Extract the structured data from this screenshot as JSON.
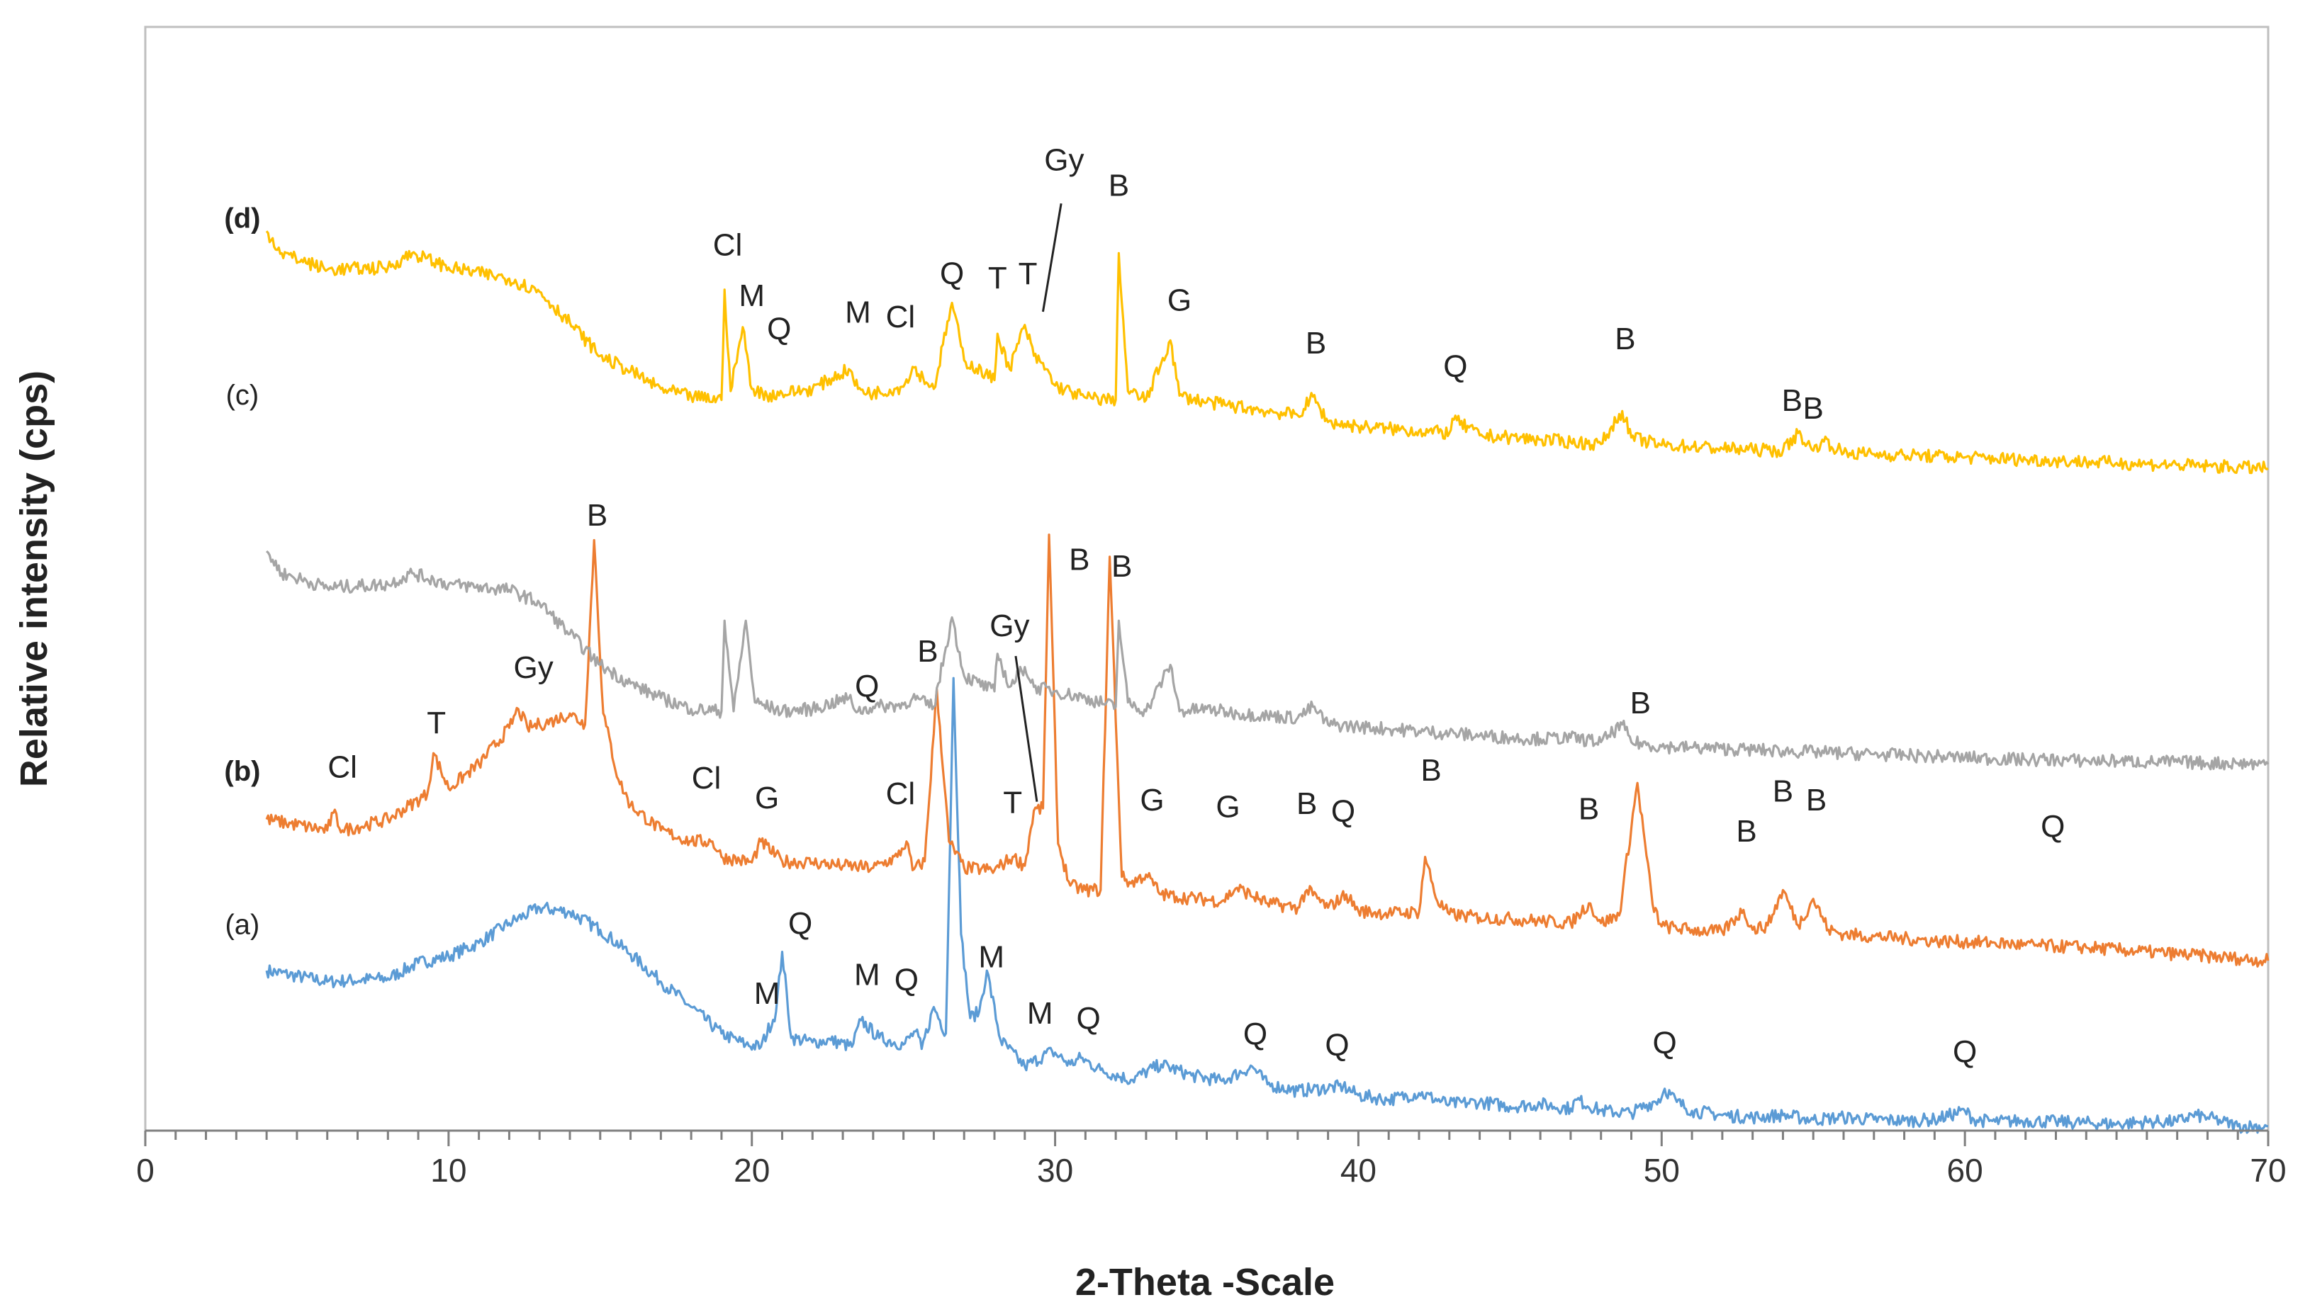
{
  "chart_data": {
    "type": "line",
    "title": "",
    "xlabel": "2-Theta -Scale",
    "ylabel": "Relative intensity (cps)",
    "xlim": [
      0,
      70
    ],
    "ylim": [
      0,
      1000
    ],
    "x_ticks": [
      "0",
      "10",
      "20",
      "30",
      "40",
      "50",
      "60",
      "70"
    ],
    "y_ticks_shown": false,
    "grid": false,
    "series": [
      {
        "name": "(a)",
        "label": "(a)",
        "color": "#5b9bd5",
        "x": [
          4,
          6,
          8,
          9,
          10,
          11,
          12,
          13,
          14,
          15,
          16,
          17,
          18,
          19,
          19.8,
          20.3,
          20.8,
          21.0,
          21.3,
          22,
          22.6,
          23.3,
          23.6,
          24.2,
          25.0,
          25.4,
          25.6,
          26.0,
          26.4,
          26.65,
          26.9,
          27.2,
          27.5,
          27.75,
          28.2,
          29.0,
          29.9,
          30.5,
          30.85,
          31.5,
          32.5,
          33.5,
          34.5,
          35.5,
          36.5,
          37,
          38,
          39.5,
          40,
          41,
          42,
          43,
          44,
          45,
          46,
          47,
          47.2,
          48,
          49,
          50,
          50.1,
          50.5,
          51,
          52,
          53,
          54,
          55,
          56,
          57,
          58,
          59,
          60,
          60.3,
          61,
          62,
          63,
          64,
          65,
          66,
          67,
          67.5,
          68,
          68.5,
          69,
          70
        ],
        "y": [
          145,
          135,
          138,
          152,
          158,
          170,
          188,
          202,
          198,
          182,
          160,
          135,
          112,
          88,
          78,
          76,
          108,
          162,
          84,
          80,
          82,
          76,
          100,
          84,
          78,
          90,
          74,
          112,
          88,
          410,
          178,
          102,
          108,
          145,
          82,
          58,
          72,
          60,
          66,
          55,
          46,
          60,
          50,
          45,
          58,
          42,
          36,
          40,
          32,
          28,
          34,
          24,
          26,
          22,
          24,
          20,
          28,
          18,
          16,
          30,
          38,
          26,
          18,
          14,
          12,
          14,
          10,
          12,
          10,
          9,
          10,
          18,
          10,
          8,
          9,
          8,
          7,
          6,
          8,
          8,
          14,
          12,
          8,
          4,
          4
        ]
      },
      {
        "name": "(b)",
        "label": "(b)",
        "color": "#ed7d31",
        "x": [
          4,
          6,
          6.2,
          6.5,
          8,
          9.3,
          9.5,
          10,
          11,
          12,
          12.3,
          12.6,
          13,
          13.5,
          14,
          14.5,
          14.8,
          15.1,
          15.6,
          16,
          17,
          18,
          18.7,
          19,
          20,
          20.3,
          21,
          22,
          23,
          24,
          24.8,
          25.1,
          25.3,
          25.7,
          26.1,
          26.5,
          27,
          28,
          28.6,
          29,
          29.3,
          29.6,
          29.8,
          30.1,
          30.5,
          31,
          31.5,
          31.8,
          32.2,
          32.5,
          33,
          33.5,
          34,
          35.5,
          36,
          37,
          38,
          38.3,
          39,
          39.6,
          40,
          41,
          42,
          42.2,
          42.6,
          43,
          44,
          45,
          46,
          47,
          47.6,
          48,
          48.6,
          49.2,
          49.7,
          50,
          51,
          52,
          52.7,
          53,
          53.5,
          54,
          54.5,
          55,
          55.5,
          56,
          57,
          58,
          59,
          60,
          61,
          62,
          63,
          64,
          65,
          66,
          67,
          68,
          69,
          70
        ],
        "y": [
          282,
          272,
          288,
          272,
          282,
          305,
          342,
          310,
          332,
          365,
          382,
          365,
          368,
          372,
          378,
          368,
          535,
          378,
          318,
          295,
          272,
          262,
          262,
          248,
          243,
          262,
          244,
          243,
          240,
          238,
          248,
          262,
          236,
          244,
          400,
          262,
          238,
          236,
          248,
          240,
          290,
          292,
          540,
          260,
          222,
          218,
          218,
          520,
          230,
          224,
          232,
          214,
          212,
          208,
          220,
          206,
          202,
          218,
          202,
          214,
          199,
          197,
          198,
          248,
          208,
          196,
          193,
          192,
          190,
          188,
          206,
          188,
          195,
          315,
          205,
          185,
          182,
          180,
          200,
          182,
          186,
          218,
          186,
          210,
          182,
          178,
          176,
          174,
          172,
          171,
          170,
          168,
          167,
          166,
          164,
          162,
          160,
          158,
          156,
          154
        ]
      },
      {
        "name": "(c)",
        "label": "(c)",
        "color": "#a5a5a5",
        "x": [
          4,
          4.5,
          6,
          8,
          8.8,
          10,
          12,
          13,
          14,
          15,
          16,
          17,
          18,
          19,
          19.1,
          19.4,
          19.8,
          20.1,
          21,
          22,
          23.2,
          23.5,
          24,
          25,
          25.3,
          26,
          26.6,
          27,
          28,
          28.1,
          28.5,
          29,
          29.3,
          30,
          31,
          32,
          32.1,
          32.4,
          33,
          33.8,
          34.1,
          35,
          36,
          37,
          38,
          38.5,
          39,
          40,
          41,
          42,
          43,
          44,
          45,
          46,
          47,
          48,
          48.7,
          49,
          50,
          51,
          52,
          53,
          54,
          55,
          56,
          57,
          58,
          59,
          60,
          61,
          62,
          63,
          64,
          65,
          66,
          67,
          68,
          69,
          70
        ],
        "y": [
          525,
          505,
          492,
          495,
          505,
          495,
          490,
          478,
          450,
          422,
          405,
          392,
          382,
          380,
          462,
          380,
          462,
          388,
          380,
          382,
          392,
          380,
          384,
          386,
          392,
          384,
          465,
          412,
          398,
          432,
          402,
          420,
          402,
          398,
          392,
          384,
          462,
          388,
          380,
          422,
          380,
          382,
          378,
          376,
          374,
          384,
          368,
          366,
          364,
          362,
          360,
          358,
          356,
          355,
          356,
          352,
          368,
          352,
          348,
          347,
          346,
          345,
          344,
          343,
          342,
          341,
          340,
          339,
          338,
          337,
          336,
          336,
          335,
          335,
          334,
          334,
          333,
          333,
          332
        ]
      },
      {
        "name": "(d)",
        "label": "(d)",
        "color": "#ffc000",
        "x": [
          4,
          4.5,
          6,
          8,
          8.8,
          10,
          12,
          13,
          14,
          15,
          16,
          17,
          18,
          19,
          19.1,
          19.3,
          19.7,
          20,
          20.5,
          21,
          22,
          23.2,
          23.5,
          24,
          25,
          25.3,
          26,
          26.6,
          27,
          28,
          28.1,
          28.5,
          29,
          29.3,
          29.7,
          30,
          31,
          32,
          32.1,
          32.4,
          33,
          33.8,
          34.1,
          35,
          36,
          37,
          38,
          38.5,
          39,
          40,
          41,
          42,
          43,
          43.1,
          44,
          45,
          46,
          47,
          48,
          48.7,
          49,
          50,
          51,
          52,
          53,
          54,
          54.5,
          55,
          55.3,
          56,
          57,
          58,
          59,
          60,
          61,
          62,
          63,
          64,
          65,
          66,
          67,
          68,
          69,
          70
        ],
        "y": [
          815,
          795,
          780,
          782,
          795,
          782,
          772,
          760,
          732,
          702,
          688,
          672,
          665,
          662,
          762,
          670,
          728,
          672,
          666,
          668,
          672,
          690,
          672,
          668,
          674,
          692,
          672,
          750,
          698,
          680,
          722,
          690,
          730,
          702,
          690,
          675,
          664,
          662,
          795,
          670,
          662,
          716,
          666,
          660,
          656,
          652,
          648,
          665,
          642,
          638,
          636,
          634,
          632,
          645,
          630,
          628,
          626,
          624,
          622,
          652,
          628,
          621,
          620,
          618,
          617,
          616,
          632,
          616,
          626,
          614,
          613,
          612,
          611,
          610,
          609,
          608,
          607,
          606,
          605,
          604,
          603,
          602,
          601,
          600
        ]
      }
    ],
    "annotations": [
      {
        "text": "Cl",
        "x": 6.5,
        "y": 320,
        "series": "(b)"
      },
      {
        "text": "T",
        "x": 9.6,
        "y": 360,
        "series": "(b)"
      },
      {
        "text": "Gy",
        "x": 12.8,
        "y": 410,
        "series": "(b)"
      },
      {
        "text": "B",
        "x": 14.9,
        "y": 548,
        "series": "(b)"
      },
      {
        "text": "Cl",
        "x": 18.5,
        "y": 310,
        "series": "(b)"
      },
      {
        "text": "G",
        "x": 20.5,
        "y": 292,
        "series": "(b)"
      },
      {
        "text": "Q",
        "x": 23.8,
        "y": 393,
        "series": "(b)"
      },
      {
        "text": "B",
        "x": 25.8,
        "y": 425,
        "series": "(b)"
      },
      {
        "text": "Cl",
        "x": 24.9,
        "y": 296,
        "series": "(b)"
      },
      {
        "text": "Gy",
        "x": 28.5,
        "y": 448,
        "series": "(b)"
      },
      {
        "text": "T",
        "x": 28.6,
        "y": 288,
        "series": "(b)"
      },
      {
        "text": "B",
        "x": 30.8,
        "y": 508,
        "series": "(b)"
      },
      {
        "text": "B",
        "x": 32.2,
        "y": 502,
        "series": "(b)"
      },
      {
        "text": "G",
        "x": 33.2,
        "y": 290,
        "series": "(b)"
      },
      {
        "text": "G",
        "x": 35.7,
        "y": 284,
        "series": "(b)"
      },
      {
        "text": "B",
        "x": 38.3,
        "y": 287,
        "series": "(b)"
      },
      {
        "text": "Q",
        "x": 39.5,
        "y": 280,
        "series": "(b)"
      },
      {
        "text": "B",
        "x": 42.4,
        "y": 317,
        "series": "(b)"
      },
      {
        "text": "B",
        "x": 47.6,
        "y": 282,
        "series": "(b)"
      },
      {
        "text": "B",
        "x": 49.3,
        "y": 378,
        "series": "(b)"
      },
      {
        "text": "B",
        "x": 52.8,
        "y": 262,
        "series": "(b)"
      },
      {
        "text": "B",
        "x": 54.0,
        "y": 298,
        "series": "(b)"
      },
      {
        "text": "B",
        "x": 55.1,
        "y": 290,
        "series": "(b)"
      },
      {
        "text": "Q",
        "x": 62.9,
        "y": 266,
        "series": "(b)"
      },
      {
        "text": "Q",
        "x": 21.6,
        "y": 178,
        "series": "(a)"
      },
      {
        "text": "M",
        "x": 20.5,
        "y": 115,
        "series": "(a)"
      },
      {
        "text": "M",
        "x": 23.8,
        "y": 132,
        "series": "(a)"
      },
      {
        "text": "Q",
        "x": 25.1,
        "y": 127,
        "series": "(a)"
      },
      {
        "text": "M",
        "x": 27.9,
        "y": 148,
        "series": "(a)"
      },
      {
        "text": "M",
        "x": 29.5,
        "y": 97,
        "series": "(a)"
      },
      {
        "text": "Q",
        "x": 31.1,
        "y": 92,
        "series": "(a)"
      },
      {
        "text": "Q",
        "x": 36.6,
        "y": 78,
        "series": "(a)"
      },
      {
        "text": "Q",
        "x": 39.3,
        "y": 68,
        "series": "(a)"
      },
      {
        "text": "Q",
        "x": 50.1,
        "y": 70,
        "series": "(a)"
      },
      {
        "text": "Q",
        "x": 60.0,
        "y": 62,
        "series": "(a)"
      },
      {
        "text": "Cl",
        "x": 19.2,
        "y": 793,
        "series": "(d)"
      },
      {
        "text": "M",
        "x": 20.0,
        "y": 747,
        "series": "(d)"
      },
      {
        "text": "Q",
        "x": 20.9,
        "y": 717,
        "series": "(d)"
      },
      {
        "text": "M",
        "x": 23.5,
        "y": 732,
        "series": "(d)"
      },
      {
        "text": "Cl",
        "x": 24.9,
        "y": 728,
        "series": "(d)"
      },
      {
        "text": "Q",
        "x": 26.6,
        "y": 767,
        "series": "(d)"
      },
      {
        "text": "T",
        "x": 28.1,
        "y": 763,
        "series": "(d)"
      },
      {
        "text": "T",
        "x": 29.1,
        "y": 767,
        "series": "(d)"
      },
      {
        "text": "Gy",
        "x": 30.3,
        "y": 870,
        "series": "(d)"
      },
      {
        "text": "B",
        "x": 32.1,
        "y": 847,
        "series": "(d)"
      },
      {
        "text": "G",
        "x": 34.1,
        "y": 743,
        "series": "(d)"
      },
      {
        "text": "B",
        "x": 38.6,
        "y": 704,
        "series": "(d)"
      },
      {
        "text": "Q",
        "x": 43.2,
        "y": 683,
        "series": "(d)"
      },
      {
        "text": "B",
        "x": 48.8,
        "y": 708,
        "series": "(d)"
      },
      {
        "text": "B",
        "x": 54.3,
        "y": 652,
        "series": "(d)"
      },
      {
        "text": "B",
        "x": 55.0,
        "y": 645,
        "series": "(d)"
      }
    ],
    "leaders": [
      {
        "from_x": 28.7,
        "from_y": 430,
        "to_x": 29.4,
        "to_y": 298
      },
      {
        "from_x": 30.2,
        "from_y": 840,
        "to_x": 29.6,
        "to_y": 742
      }
    ],
    "series_labels": [
      {
        "text": "(d)",
        "x": 3.2,
        "y": 818
      },
      {
        "text": "(c)",
        "x": 3.2,
        "y": 658
      },
      {
        "text": "(b)",
        "x": 3.2,
        "y": 317
      },
      {
        "text": "(a)",
        "x": 3.2,
        "y": 178
      }
    ]
  }
}
